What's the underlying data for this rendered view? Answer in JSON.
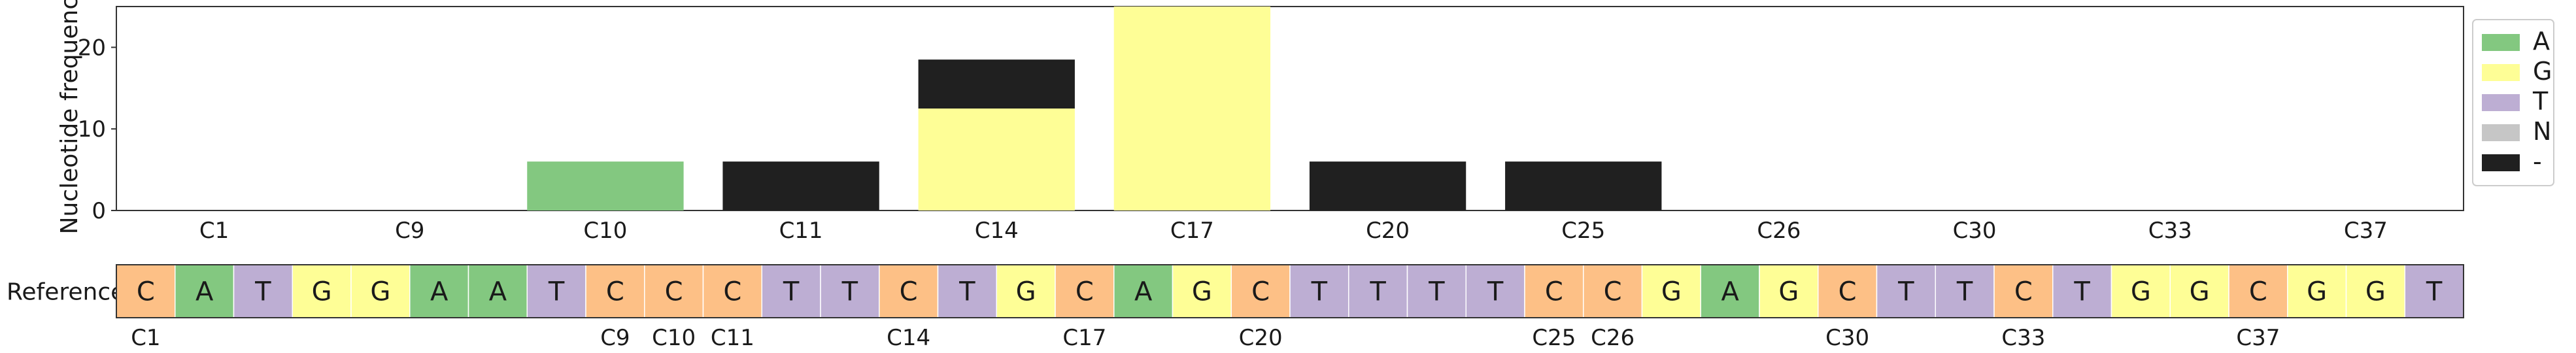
{
  "chart_data": [
    {
      "type": "bar",
      "stacked": true,
      "ylabel": "Nucleotide frequency",
      "xlabel": "",
      "ylim": [
        0,
        25
      ],
      "yticks": [
        0,
        10,
        20
      ],
      "categories": [
        "C1",
        "C9",
        "C10",
        "C11",
        "C14",
        "C17",
        "C20",
        "C25",
        "C26",
        "C30",
        "C33",
        "C37"
      ],
      "series": [
        {
          "name": "A",
          "color": "#83c880",
          "values": [
            0,
            0,
            6,
            0,
            0,
            0,
            0,
            0,
            0,
            0,
            0,
            0
          ]
        },
        {
          "name": "G",
          "color": "#fefe96",
          "values": [
            0,
            0,
            0,
            0,
            12.5,
            25,
            0,
            0,
            0,
            0,
            0,
            0
          ]
        },
        {
          "name": "T",
          "color": "#bdaed3",
          "values": [
            0,
            0,
            0,
            0,
            0,
            0,
            0,
            0,
            0,
            0,
            0,
            0
          ]
        },
        {
          "name": "N",
          "color": "#c6c6c6",
          "values": [
            0,
            0,
            0,
            0,
            0,
            0,
            0,
            0,
            0,
            0,
            0,
            0
          ]
        },
        {
          "name": "-",
          "color": "#202020",
          "values": [
            0,
            0,
            0,
            6,
            6,
            0,
            6,
            6,
            0,
            0,
            0,
            0
          ]
        }
      ],
      "legend": {
        "position": "right",
        "entries": [
          "A",
          "G",
          "T",
          "N",
          "-"
        ]
      }
    },
    {
      "type": "sequence-track",
      "title": "Reference",
      "sequence": [
        "C",
        "A",
        "T",
        "G",
        "G",
        "A",
        "A",
        "T",
        "C",
        "C",
        "C",
        "T",
        "T",
        "C",
        "T",
        "G",
        "C",
        "A",
        "G",
        "C",
        "T",
        "T",
        "T",
        "T",
        "C",
        "C",
        "G",
        "A",
        "G",
        "C",
        "T",
        "T",
        "C",
        "T",
        "G",
        "G",
        "C",
        "G",
        "G",
        "T"
      ],
      "base_colors": {
        "A": "#83c880",
        "C": "#fdc086",
        "G": "#fefe96",
        "T": "#bdaed3"
      },
      "position_labels": [
        {
          "label": "C1",
          "index": 0
        },
        {
          "label": "C9",
          "index": 8
        },
        {
          "label": "C10",
          "index": 9
        },
        {
          "label": "C11",
          "index": 10
        },
        {
          "label": "C14",
          "index": 13
        },
        {
          "label": "C17",
          "index": 16
        },
        {
          "label": "C20",
          "index": 19
        },
        {
          "label": "C25",
          "index": 24
        },
        {
          "label": "C26",
          "index": 25
        },
        {
          "label": "C30",
          "index": 29
        },
        {
          "label": "C33",
          "index": 32
        },
        {
          "label": "C37",
          "index": 36
        }
      ]
    }
  ]
}
